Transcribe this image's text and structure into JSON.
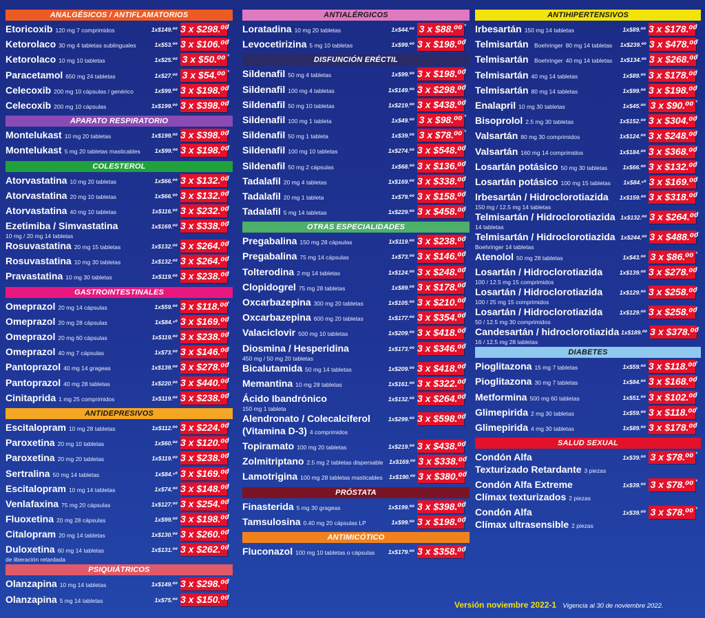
{
  "col1": [
    {
      "header": "ANALGÉSICOS / ANTIFLAMATORIOS",
      "color": "#ee5a24",
      "rows": [
        {
          "name": "Etoricoxib",
          "detail": "120 mg 7 comprimidos",
          "unit": "1x$149.⁰⁰",
          "promo": "3 x $298.⁰⁰"
        },
        {
          "name": "Ketorolaco",
          "detail": "30 mg 4 tabletas sublinguales",
          "unit": "1x$53.⁰⁰",
          "promo": "3 x $106.⁰⁰"
        },
        {
          "name": "Ketorolaco",
          "detail": "10 mg 10 tabletas",
          "unit": "1x$25.⁰⁰",
          "promo": "3 x $50.⁰⁰"
        },
        {
          "name": "Paracetamol",
          "detail": "650 mg 24 tabletas",
          "unit": "1x$27.⁰⁰",
          "promo": "3 x $54.⁰⁰"
        },
        {
          "name": "Celecoxib",
          "detail": "200 mg 10 cápsulas / genérico",
          "unit": "1x$99.⁰⁰",
          "promo": "3 x $198.⁰⁰"
        },
        {
          "name": "Celecoxib",
          "detail": "200 mg 10 cápsulas",
          "unit": "1x$199.⁰⁰",
          "promo": "3 x $398.⁰⁰"
        }
      ]
    },
    {
      "header": "APARATO RESPIRATORIO",
      "color": "#8a4bb5",
      "rows": [
        {
          "name": "Montelukast",
          "detail": "10 mg 20 tabletas",
          "unit": "1x$199.⁰⁰",
          "promo": "3 x $398.⁰⁰"
        },
        {
          "name": "Montelukast",
          "detail": "5 mg 20 tabletas masticables",
          "unit": "1x$99.⁰⁰",
          "promo": "3 x $198.⁰⁰"
        }
      ]
    },
    {
      "header": "COLESTEROL",
      "color": "#1fa23c",
      "rows": [
        {
          "name": "Atorvastatina",
          "detail": "10 mg 20 tabletas",
          "unit": "1x$66.⁰⁰",
          "promo": "3 x $132.⁰⁰"
        },
        {
          "name": "Atorvastatina",
          "detail": "20 mg 10 tabletas",
          "unit": "1x$66.⁰⁰",
          "promo": "3 x $132.⁰⁰"
        },
        {
          "name": "Atorvastatina",
          "detail": "40 mg 10 tabletas",
          "unit": "1x$116.⁰⁰",
          "promo": "3 x $232.⁰⁰"
        },
        {
          "name": "Ezetimiba / Simvastatina",
          "detail": "",
          "line2": "10 mg / 20 mg 14 tabletas",
          "unit": "1x$169.⁰⁰",
          "promo": "3 x $338.⁰⁰"
        },
        {
          "name": "Rosuvastatina",
          "detail": "20 mg 15 tabletas",
          "unit": "1x$132.⁰⁰",
          "promo": "3 x $264.⁰⁰"
        },
        {
          "name": "Rosuvastatina",
          "detail": "10 mg 30 tabletas",
          "unit": "1x$132.⁰⁰",
          "promo": "3 x $264.⁰⁰"
        },
        {
          "name": "Pravastatina",
          "detail": "10 mg 30 tabletas",
          "unit": "1x$119.⁰⁰",
          "promo": "3 x $238.⁰⁰"
        }
      ]
    },
    {
      "header": "GASTROINTESTINALES",
      "color": "#e8177f",
      "rows": [
        {
          "name": "Omeprazol",
          "detail": "20 mg 14 cápsulas",
          "unit": "1x$59.⁰⁰",
          "promo": "3 x $118.⁰⁰"
        },
        {
          "name": "Omeprazol",
          "detail": "20 mg 28 cápsulas",
          "unit": "1x$84.⁵⁰",
          "promo": "3 x $169.⁰⁰"
        },
        {
          "name": "Omeprazol",
          "detail": "20 mg 60 cápsulas",
          "unit": "1x$119.⁰⁰",
          "promo": "3 x $238.⁰⁰"
        },
        {
          "name": "Omeprazol",
          "detail": "40 mg 7 cápsulas",
          "unit": "1x$73.⁰⁰",
          "promo": "3 x $146.⁰⁰"
        },
        {
          "name": "Pantoprazol",
          "detail": "40 mg 14 grageas",
          "unit": "1x$139.⁰⁰",
          "promo": "3 x $278.⁰⁰"
        },
        {
          "name": "Pantoprazol",
          "detail": "40 mg 28 tabletas",
          "unit": "1x$220.⁰⁰",
          "promo": "3 x $440.⁰⁰"
        },
        {
          "name": "Cinitaprida",
          "detail": "1 mg 25 comprimidos",
          "unit": "1x$119.⁰⁰",
          "promo": "3 x $238.⁰⁰"
        }
      ]
    },
    {
      "header": "ANTIDEPRESIVOS",
      "color": "#f5a623",
      "light": true,
      "rows": [
        {
          "name": "Escitalopram",
          "detail": "10 mg 28 tabletas",
          "unit": "1x$112.⁰⁰",
          "promo": "3 x $224.⁰⁰"
        },
        {
          "name": "Paroxetina",
          "detail": "20 mg 10 tabletas",
          "unit": "1x$60.⁰⁰",
          "promo": "3 x $120.⁰⁰"
        },
        {
          "name": "Paroxetina",
          "detail": "20 mg 20 tabletas",
          "unit": "1x$119.⁰⁰",
          "promo": "3 x $238.⁰⁰"
        },
        {
          "name": "Sertralina",
          "detail": "50 mg 14 tabletas",
          "unit": "1x$84.⁵⁰",
          "promo": "3 x $169.⁰⁰"
        },
        {
          "name": "Escitalopram",
          "detail": "10 mg 14 tabletas",
          "unit": "1x$74.⁰⁰",
          "promo": "3 x $148.⁰⁰"
        },
        {
          "name": "Venlafaxina",
          "detail": "75 mg 20 cápsulas",
          "unit": "1x$127.⁰⁰",
          "promo": "3 x $254.⁰⁰"
        },
        {
          "name": "Fluoxetina",
          "detail": "20 mg 28 cápsulas",
          "unit": "1x$99.⁰⁰",
          "promo": "3 x $198.⁰⁰"
        },
        {
          "name": "Citalopram",
          "detail": "20 mg 14 tabletas",
          "unit": "1x$130.⁰⁰",
          "promo": "3 x $260.⁰⁰"
        },
        {
          "name": "Duloxetina",
          "detail": "60 mg 14 tabletas",
          "line2": "de liberación retardada",
          "unit": "1x$131.⁰⁰",
          "promo": "3 x $262.⁰⁰"
        }
      ]
    },
    {
      "header": "PSIQUIÁTRICOS",
      "color": "#e05a6a",
      "rows": [
        {
          "name": "Olanzapina",
          "detail": "10 mg 14 tabletas",
          "unit": "1x$149.⁰⁰",
          "promo": "3 x $298.⁰⁰"
        },
        {
          "name": "Olanzapina",
          "detail": "5 mg 14 tabletas",
          "unit": "1x$75.⁰⁰",
          "promo": "3 x $150.⁰⁰"
        }
      ]
    }
  ],
  "col2": [
    {
      "header": "ANTIALÉRGICOS",
      "color": "#e07ac0",
      "light": true,
      "rows": [
        {
          "name": "Loratadina",
          "detail": "10 mg 20 tabletas",
          "unit": "1x$44.⁰⁰",
          "promo": "3 x $88.⁰⁰"
        },
        {
          "name": "Levocetirizina",
          "detail": "5 mg 10 tabletas",
          "unit": "1x$99.⁰⁰",
          "promo": "3 x $198.⁰⁰"
        }
      ]
    },
    {
      "header": "DISFUNCIÓN ERÉCTIL",
      "color": "#2a2a66",
      "rows": [
        {
          "name": "Sildenafil",
          "detail": "50 mg 4 tabletas",
          "unit": "1x$99.⁰⁰",
          "promo": "3 x $198.⁰⁰"
        },
        {
          "name": "Sildenafil",
          "detail": "100 mg 4 tabletas",
          "unit": "1x$149.⁰⁰",
          "promo": "3 x $298.⁰⁰"
        },
        {
          "name": "Sildenafil",
          "detail": "50 mg 10 tabletas",
          "unit": "1x$219.⁰⁰",
          "promo": "3 x $438.⁰⁰"
        },
        {
          "name": "Sildenafil",
          "detail": "100 mg 1 tableta",
          "unit": "1x$49.⁰⁰",
          "promo": "3 x $98.⁰⁰"
        },
        {
          "name": "Sildenafil",
          "detail": "50 mg 1 tableta",
          "unit": "1x$39.⁰⁰",
          "promo": "3 x $78.⁰⁰"
        },
        {
          "name": "Sildenafil",
          "detail": "100 mg 10 tabletas",
          "unit": "1x$274.⁰⁰",
          "promo": "3 x $548.⁰⁰"
        },
        {
          "name": "Sildenafil",
          "detail": "50 mg 2 cápsulas",
          "unit": "1x$68.⁰⁰",
          "promo": "3 x $136.⁰⁰"
        },
        {
          "name": "Tadalafil",
          "detail": "20 mg 4 tabletas",
          "unit": "1x$169.⁰⁰",
          "promo": "3 x $338.⁰⁰"
        },
        {
          "name": "Tadalafil",
          "detail": "20 mg 1 tableta",
          "unit": "1x$79.⁰⁰",
          "promo": "3 x $158.⁰⁰"
        },
        {
          "name": "Tadalafil",
          "detail": "5 mg 14 tabletas",
          "unit": "1x$229.⁰⁰",
          "promo": "3 x $458.⁰⁰"
        }
      ]
    },
    {
      "header": "OTRAS ESPECIALIDADES",
      "color": "#4caf6a",
      "rows": [
        {
          "name": "Pregabalina",
          "detail": "150 mg 28 cápsulas",
          "unit": "1x$119.⁰⁰",
          "promo": "3 x $238.⁰⁰"
        },
        {
          "name": "Pregabalina",
          "detail": "75 mg 14 cápsulas",
          "unit": "1x$73.⁰⁰",
          "promo": "3 x $146.⁰⁰"
        },
        {
          "name": "Tolterodina",
          "detail": "2 mg 14 tabletas",
          "unit": "1x$124.⁰⁰",
          "promo": "3 x $248.⁰⁰"
        },
        {
          "name": "Clopidogrel",
          "detail": "75 mg 28 tabletas",
          "unit": "1x$89.⁰⁰",
          "promo": "3 x $178.⁰⁰"
        },
        {
          "name": "Oxcarbazepina",
          "detail": "300 mg 20 tabletas",
          "unit": "1x$105.⁰⁰",
          "promo": "3 x $210.⁰⁰"
        },
        {
          "name": "Oxcarbazepina",
          "detail": "600 mg 20 tabletas",
          "unit": "1x$177.⁰⁰",
          "promo": "3 x $354.⁰⁰"
        },
        {
          "name": "Valaciclovir",
          "detail": "500 mg 10 tabletas",
          "unit": "1x$209.⁰⁰",
          "promo": "3 x $418.⁰⁰"
        },
        {
          "name": "Diosmina / Hesperidina",
          "detail": "",
          "line2": "450 mg / 50 mg 20 tabletas",
          "unit": "1x$173.⁰⁰",
          "promo": "3 x $346.⁰⁰"
        },
        {
          "name": "Bicalutamida",
          "detail": "50 mg 14 tabletas",
          "unit": "1x$209.⁰⁰",
          "promo": "3 x $418.⁰⁰"
        },
        {
          "name": "Memantina",
          "detail": "10 mg 28 tabletas",
          "unit": "1x$161.⁰⁰",
          "promo": "3 x $322.⁰⁰"
        },
        {
          "name": "Ácido Ibandrónico",
          "detail": "",
          "line2": "150 mg 1 tableta",
          "unit": "1x$132.⁰⁰",
          "promo": "3 x $264.⁰⁰"
        },
        {
          "name": "Alendronato / Colecalciferol",
          "detail": "",
          "name2": "(Vitamina D-3)",
          "detail2": "4 comprimidos",
          "unit": "1x$299.⁰⁰",
          "promo": "3 x $598.⁰⁰"
        },
        {
          "name": "Topiramato",
          "detail": "100 mg 20 tabletas",
          "unit": "1x$219.⁰⁰",
          "promo": "3 x $438.⁰⁰"
        },
        {
          "name": "Zolmitriptano",
          "detail": "2.5 mg 2 tabletas dispersable",
          "unit": "1x$169.⁰⁰",
          "promo": "3 x $338.⁰⁰"
        },
        {
          "name": "Lamotrigina",
          "detail": "100 mg 28 tabletas masticables",
          "unit": "1x$190.⁰⁰",
          "promo": "3 x $380.⁰⁰"
        }
      ]
    },
    {
      "header": "PRÓSTATA",
      "color": "#7a1424",
      "rows": [
        {
          "name": "Finasterida",
          "detail": "5 mg 30 grageas",
          "unit": "1x$199.⁰⁰",
          "promo": "3 x $398.⁰⁰"
        },
        {
          "name": "Tamsulosina",
          "detail": "0.40 mg 20 cápsulas LP",
          "unit": "1x$99.⁰⁰",
          "promo": "3 x $198.⁰⁰"
        }
      ]
    },
    {
      "header": "ANTIMICÓTICO",
      "color": "#f0821e",
      "rows": [
        {
          "name": "Fluconazol",
          "detail": "100 mg 10 tabletas o cápsulas",
          "unit": "1x$179.⁰⁰",
          "promo": "3 x $358.⁰⁰"
        }
      ]
    }
  ],
  "col3": [
    {
      "header": "ANTIHIPERTENSIVOS",
      "color": "#f2e40a",
      "light": true,
      "rows": [
        {
          "name": "Irbesartán",
          "detail": "150 mg 14 tabletas",
          "unit": "1x$89.⁰⁰",
          "promo": "3 x $178.⁰⁰"
        },
        {
          "name": "Telmisartán",
          "sub": "Boehringer",
          "detail": "80 mg 14 tabletas",
          "unit": "1x$239.⁰⁰",
          "promo": "3 x $478.⁰⁰"
        },
        {
          "name": "Telmisartán",
          "sub": "Boehringer",
          "detail": "40 mg 14 tabletas",
          "unit": "1x$134.⁰⁰",
          "promo": "3 x $268.⁰⁰"
        },
        {
          "name": "Telmisartán",
          "detail": "40 mg 14 tabletas",
          "unit": "1x$89.⁰⁰",
          "promo": "3 x $178.⁰⁰"
        },
        {
          "name": "Telmisartán",
          "detail": "80 mg 14 tabletas",
          "unit": "1x$99.⁰⁰",
          "promo": "3 x $198.⁰⁰"
        },
        {
          "name": "Enalapril",
          "detail": "10 mg 30 tabletas",
          "unit": "1x$45.⁰⁰",
          "promo": "3 x $90.⁰⁰"
        },
        {
          "name": "Bisoprolol",
          "detail": "2.5 mg 30 tabletas",
          "unit": "1x$152.⁰⁰",
          "promo": "3 x $304.⁰⁰"
        },
        {
          "name": "Valsartán",
          "detail": "80 mg 30 comprimidos",
          "unit": "1x$124.⁰⁰",
          "promo": "3 x $248.⁰⁰"
        },
        {
          "name": "Valsartán",
          "detail": "160 mg 14 comprimidos",
          "unit": "1x$184.⁰⁰",
          "promo": "3 x $368.⁰⁰"
        },
        {
          "name": "Losartán potásico",
          "detail": "50 mg 30 tabletas",
          "unit": "1x$66.⁰⁰",
          "promo": "3 x $132.⁰⁰"
        },
        {
          "name": "Losartán potásico",
          "detail": "100 mg 15 tabletas",
          "unit": "1x$84.⁵⁰",
          "promo": "3 x $169.⁰⁰"
        },
        {
          "name": "Irbesartán / Hidroclorotiazida",
          "detail": "",
          "line2": "150 mg / 12.5 mg 14 tabletas",
          "unit": "1x$159.⁰⁰",
          "promo": "3 x $318.⁰⁰"
        },
        {
          "name": "Telmisartán / Hidroclorotiazida",
          "detail": "",
          "line2": "14 tabletas",
          "unit": "1x$132.⁰⁰",
          "promo": "3 x $264.⁰⁰"
        },
        {
          "name": "Telmisartán / Hidroclorotiazida",
          "detail": "",
          "line2": "Boehringer 14 tabletas",
          "unit": "1x$244.⁰⁰",
          "promo": "3 x $488.⁰⁰"
        },
        {
          "name": "Atenolol",
          "detail": "50 mg 28 tabletas",
          "unit": "1x$43.⁰⁰",
          "promo": "3 x $86.⁰⁰"
        },
        {
          "name": "Losartán / Hidroclorotiazida",
          "detail": "",
          "line2": "100 / 12.5 mg 15 comprimidos",
          "unit": "1x$139.⁰⁰",
          "promo": "3 x $278.⁰⁰"
        },
        {
          "name": "Losartán / Hidroclorotiazida",
          "detail": "",
          "line2": "100 / 25 mg 15 comprimidos",
          "unit": "1x$129.⁰⁰",
          "promo": "3 x $258.⁰⁰"
        },
        {
          "name": "Losartán / Hidroclorotiazida",
          "detail": "",
          "line2": "50 / 12.5 mg 30 comprimidos",
          "unit": "1x$129.⁰⁰",
          "promo": "3 x $258.⁰⁰"
        },
        {
          "name": "Candesartán / hidroclorotiazida",
          "detail": "",
          "line2": "16 / 12.5 mg 28 tabletas",
          "unit": "1x$189.⁰⁰",
          "promo": "3 x $378.⁰⁰"
        }
      ]
    },
    {
      "header": "DIABETES",
      "color": "#8fc9ee",
      "light": true,
      "rows": [
        {
          "name": "Pioglitazona",
          "detail": "15 mg 7 tabletas",
          "unit": "1x$59.⁰⁰",
          "promo": "3 x $118.⁰⁰"
        },
        {
          "name": "Pioglitazona",
          "detail": "30 mg 7 tabletas",
          "unit": "1x$84.⁰⁰",
          "promo": "3 x $168.⁰⁰"
        },
        {
          "name": "Metformina",
          "detail": "500 mg 60 tabletas",
          "unit": "1x$51.⁰⁰",
          "promo": "3 x $102.⁰⁰"
        },
        {
          "name": "Glimepirida",
          "detail": "2 mg 30 tabletas",
          "unit": "1x$59.⁰⁰",
          "promo": "3 x $118.⁰⁰"
        },
        {
          "name": "Glimepirida",
          "detail": "4 mg 30 tabletas",
          "unit": "1x$89.⁰⁰",
          "promo": "3 x $178.⁰⁰"
        }
      ]
    },
    {
      "header": "SALUD SEXUAL",
      "color": "#e4112a",
      "rows": [
        {
          "name": "Condón Alfa",
          "detail": "",
          "name2": "Texturizado Retardante",
          "detail2": "3 piezas",
          "unit": "1x$39.⁰⁰",
          "promo": "3 x $78.⁰⁰"
        },
        {
          "name": "Condón Alfa Extreme",
          "detail": "",
          "name2": "Clímax texturizados",
          "detail2": "2 piezas",
          "unit": "1x$39.⁰⁰",
          "promo": "3 x $78.⁰⁰"
        },
        {
          "name": "Condón Alfa",
          "detail": "",
          "name2": "Clímax ultrasensible",
          "detail2": "2 piezas",
          "unit": "1x$39.⁰⁰",
          "promo": "3 x $78.⁰⁰"
        }
      ]
    }
  ],
  "star": "*",
  "footer": {
    "version": "Versión noviembre 2022-1",
    "validity": "Vigencia al 30 de noviembre 2022."
  }
}
